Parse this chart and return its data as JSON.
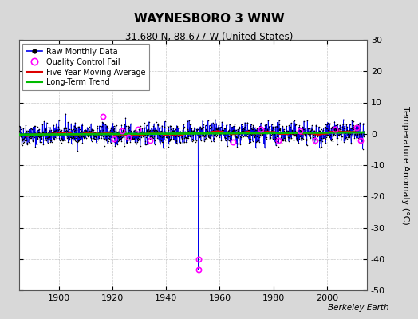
{
  "title": "WAYNESBORO 3 WNW",
  "subtitle": "31.680 N, 88.677 W (United States)",
  "ylabel": "Temperature Anomaly (°C)",
  "watermark": "Berkeley Earth",
  "xlim": [
    1885,
    2015
  ],
  "ylim": [
    -50,
    30
  ],
  "yticks_right": [
    -50,
    -40,
    -30,
    -20,
    -10,
    0,
    10,
    20,
    30
  ],
  "xticks": [
    1900,
    1920,
    1940,
    1960,
    1980,
    2000
  ],
  "year_start": 1885.0,
  "year_end": 2013.9,
  "seed": 42,
  "background_color": "#d8d8d8",
  "plot_bg_color": "#ffffff",
  "raw_color": "#0000ee",
  "raw_dot_color": "#000000",
  "qc_color": "#ff00ff",
  "moving_avg_color": "#dd0000",
  "trend_color": "#00bb00",
  "spike_year": 1952.0,
  "spike_val1": -40.0,
  "spike_val2": -43.5,
  "noise_std": 2.2,
  "trend_slope": 0.003,
  "qc_fail_data": [
    [
      1916.5,
      5.5
    ],
    [
      1920.5,
      -1.5
    ],
    [
      1923.5,
      1.0
    ],
    [
      1926.0,
      -1.0
    ],
    [
      1929.5,
      1.5
    ],
    [
      1934.0,
      -2.0
    ],
    [
      1952.0,
      -40.0
    ],
    [
      1952.1,
      -43.5
    ],
    [
      1965.0,
      -2.5
    ],
    [
      1975.5,
      1.5
    ],
    [
      1982.0,
      -2.0
    ],
    [
      1990.0,
      1.0
    ],
    [
      1995.5,
      -2.0
    ],
    [
      2003.0,
      1.5
    ],
    [
      2011.0,
      2.0
    ],
    [
      2012.5,
      -2.0
    ]
  ]
}
